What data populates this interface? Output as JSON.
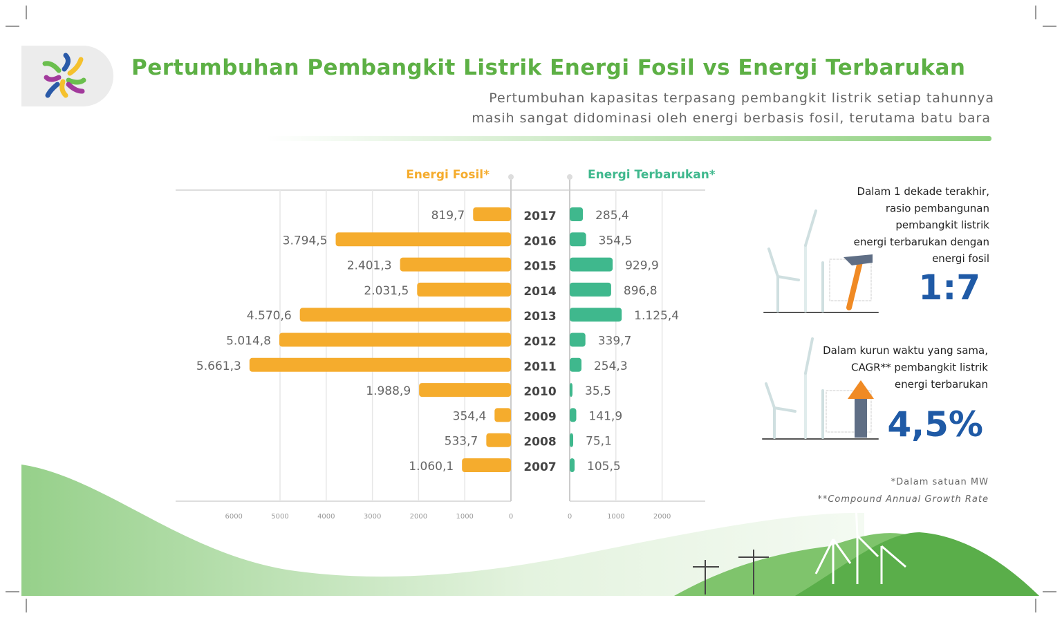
{
  "title": "Pertumbuhan Pembangkit Listrik Energi Fosil vs Energi Terbarukan",
  "subtitle": [
    "Pertumbuhan kapasitas terpasang pembangkit listrik setiap tahunnya",
    "masih sangat didominasi oleh energi berbasis fosil, terutama batu bara"
  ],
  "chart_data": {
    "type": "bar",
    "orientation": "horizontal-diverging",
    "categories": [
      "2017",
      "2016",
      "2015",
      "2014",
      "2013",
      "2012",
      "2011",
      "2010",
      "2009",
      "2008",
      "2007"
    ],
    "series": [
      {
        "name": "Energi Fosil*",
        "color": "#f5ac2d",
        "values": [
          819.7,
          3794.5,
          2401.3,
          2031.5,
          4570.6,
          5014.8,
          5661.3,
          1988.9,
          354.4,
          533.7,
          1060.1
        ],
        "labels": [
          "819,7",
          "3.794,5",
          "2.401,3",
          "2.031,5",
          "4.570,6",
          "5.014,8",
          "5.661,3",
          "1.988,9",
          "354,4",
          "533,7",
          "1.060,1"
        ]
      },
      {
        "name": "Energi Terbarukan*",
        "color": "#3fb88d",
        "values": [
          285.4,
          354.5,
          929.9,
          896.8,
          1125.4,
          339.7,
          254.3,
          35.5,
          141.9,
          75.1,
          105.5
        ],
        "labels": [
          "285,4",
          "354,5",
          "929,9",
          "896,8",
          "1.125,4",
          "339,7",
          "254,3",
          "35,5",
          "141,9",
          "75,1",
          "105,5"
        ]
      }
    ],
    "left_ticks": [
      "6000",
      "5000",
      "4000",
      "3000",
      "2000",
      "1000",
      "0"
    ],
    "right_ticks": [
      "0",
      "1000",
      "2000"
    ],
    "grid": true
  },
  "side": {
    "ratio_text": [
      "Dalam 1 dekade terakhir,",
      "rasio pembangunan",
      "pembangkit listrik",
      "energi terbarukan dengan",
      "energi fosil"
    ],
    "ratio_value": "1:7",
    "cagr_text": [
      "Dalam kurun waktu yang sama,",
      "CAGR** pembangkit listrik",
      "energi terbarukan"
    ],
    "cagr_value": "4,5%",
    "accent": "#1f5aa6"
  },
  "footnotes": [
    "*Dalam satuan MW",
    "**Compound Annual Growth Rate"
  ]
}
